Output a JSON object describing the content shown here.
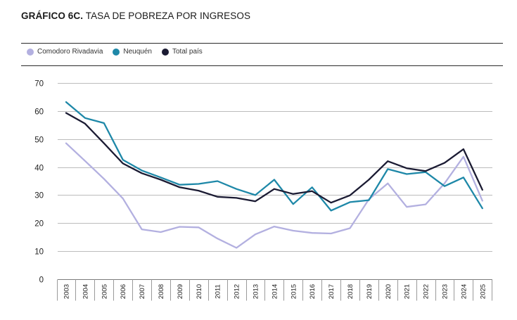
{
  "header": {
    "title_bold": "GRÁFICO 6C.",
    "title_rest": "TASA DE POBREZA POR INGRESOS"
  },
  "chart_data": {
    "type": "line",
    "title": "GRÁFICO 6C. TASA DE POBREZA POR INGRESOS",
    "xlabel": "",
    "ylabel": "",
    "ylim": [
      0,
      70
    ],
    "yticks": [
      0,
      10,
      20,
      30,
      40,
      50,
      60,
      70
    ],
    "grid": "horizontal",
    "legend_position": "top-left",
    "categories": [
      "2003",
      "2004",
      "2005",
      "2006",
      "2007",
      "2008",
      "2009",
      "2010",
      "2011",
      "2012",
      "2013",
      "2014",
      "2015",
      "2016",
      "2017",
      "2018",
      "2019",
      "2020",
      "2021",
      "2022",
      "2023",
      "2024",
      "2025"
    ],
    "series": [
      {
        "name": "Comodoro Rivadavia",
        "color": "#b3b0e0",
        "values": [
          48.5,
          42.2,
          35.8,
          28.8,
          17.8,
          16.8,
          18.7,
          18.5,
          14.5,
          11.2,
          16.0,
          18.8,
          17.3,
          16.5,
          16.3,
          18.2,
          28.5,
          34.2,
          25.8,
          26.7,
          34.2,
          43.7,
          28.0
        ]
      },
      {
        "name": "Neuquén",
        "color": "#1e88a8",
        "values": [
          63.2,
          57.5,
          55.7,
          42.6,
          38.8,
          36.3,
          33.7,
          34.0,
          35.0,
          32.2,
          30.0,
          35.5,
          26.8,
          32.8,
          24.5,
          27.5,
          28.2,
          39.3,
          37.5,
          38.2,
          33.2,
          36.3,
          25.3
        ]
      },
      {
        "name": "Total país",
        "color": "#1b1b33",
        "values": [
          59.3,
          55.5,
          48.5,
          41.3,
          37.8,
          35.5,
          32.8,
          31.6,
          29.4,
          29.0,
          27.8,
          32.2,
          30.4,
          31.4,
          27.3,
          29.9,
          35.5,
          42.1,
          39.6,
          38.6,
          41.5,
          46.4,
          31.9
        ]
      }
    ]
  }
}
